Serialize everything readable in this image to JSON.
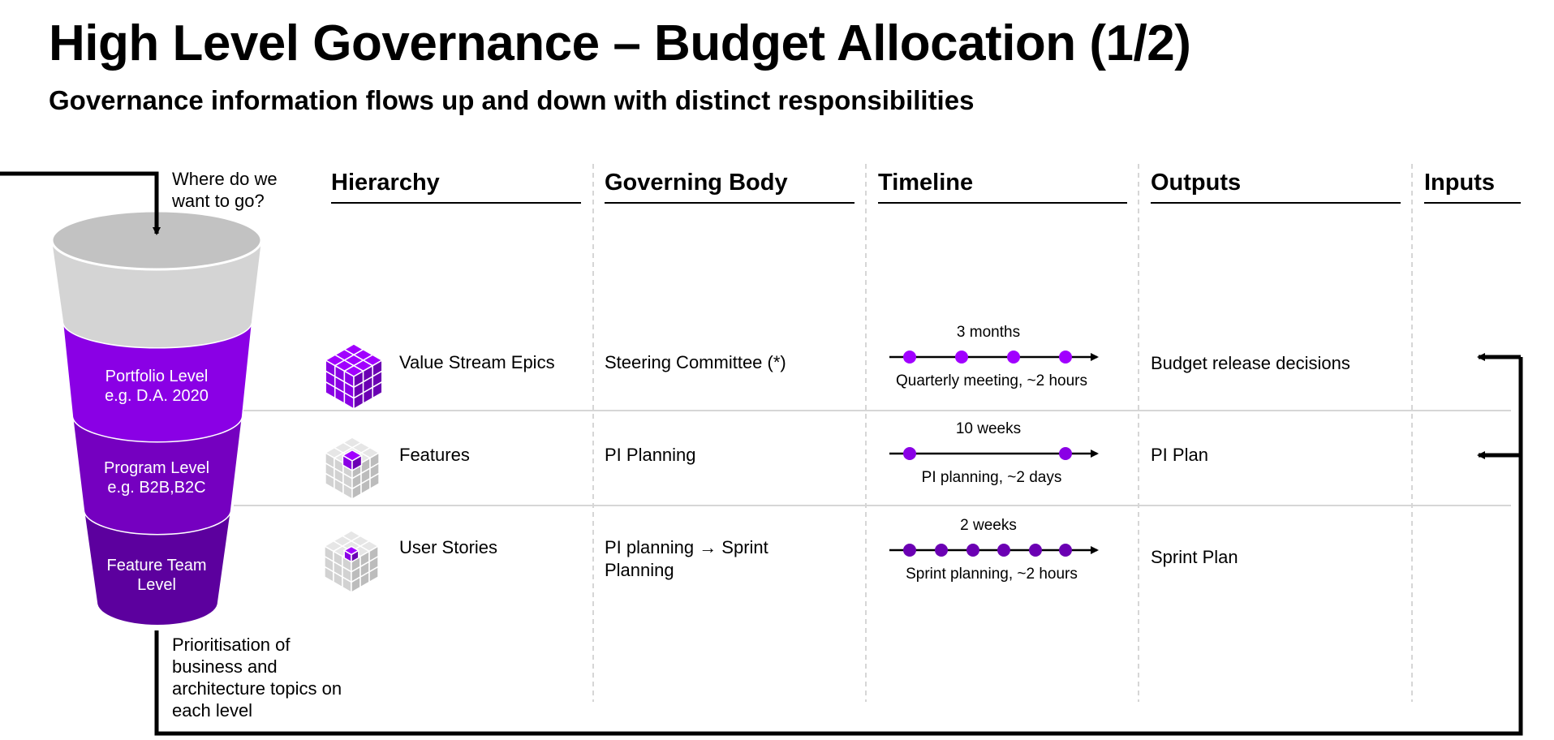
{
  "title": "High Level Governance – Budget Allocation (1/2)",
  "subtitle": "Governance information flows up and down with distinct responsibilities",
  "columns": {
    "hierarchy": "Hierarchy",
    "governing_body": "Governing Body",
    "timeline": "Timeline",
    "outputs": "Outputs",
    "inputs": "Inputs"
  },
  "funnel": {
    "top_note": "Where do we want to go?",
    "bottom_note": "Prioritisation of business and architecture topics on each level",
    "levels": [
      {
        "line1": "Portfolio Level",
        "line2": "e.g. D.A. 2020",
        "color": "#8a00e5"
      },
      {
        "line1": "Program Level",
        "line2": "e.g. B2B,B2C",
        "color": "#7500c0"
      },
      {
        "line1": "Feature Team",
        "line2": "Level",
        "color": "#5c009e"
      }
    ],
    "top_color": "#d4d4d4",
    "rim_color": "#c2c2c2"
  },
  "rows": [
    {
      "hierarchy": "Value Stream Epics",
      "hierarchy_icon": "cube-epics-icon",
      "governing_body": "Steering Committee (*)",
      "timeline_top": "3 months",
      "timeline_bottom": "Quarterly meeting, ~2 hours",
      "timeline_dots": 4,
      "dot_color": "#a100ff",
      "output": "Budget release decisions"
    },
    {
      "hierarchy": "Features",
      "hierarchy_icon": "cube-features-icon",
      "governing_body": "PI Planning",
      "timeline_top": "10 weeks",
      "timeline_bottom": "PI planning, ~2 days",
      "timeline_dots": 2,
      "dot_color": "#8a00e5",
      "output": "PI Plan"
    },
    {
      "hierarchy": "User Stories",
      "hierarchy_icon": "cube-stories-icon",
      "governing_body": "PI planning → Sprint Planning",
      "timeline_top": "2 weeks",
      "timeline_bottom": "Sprint planning, ~2 hours",
      "timeline_dots": 6,
      "dot_color": "#6b00b3",
      "output": "Sprint Plan"
    }
  ],
  "accent": "#a100ff"
}
